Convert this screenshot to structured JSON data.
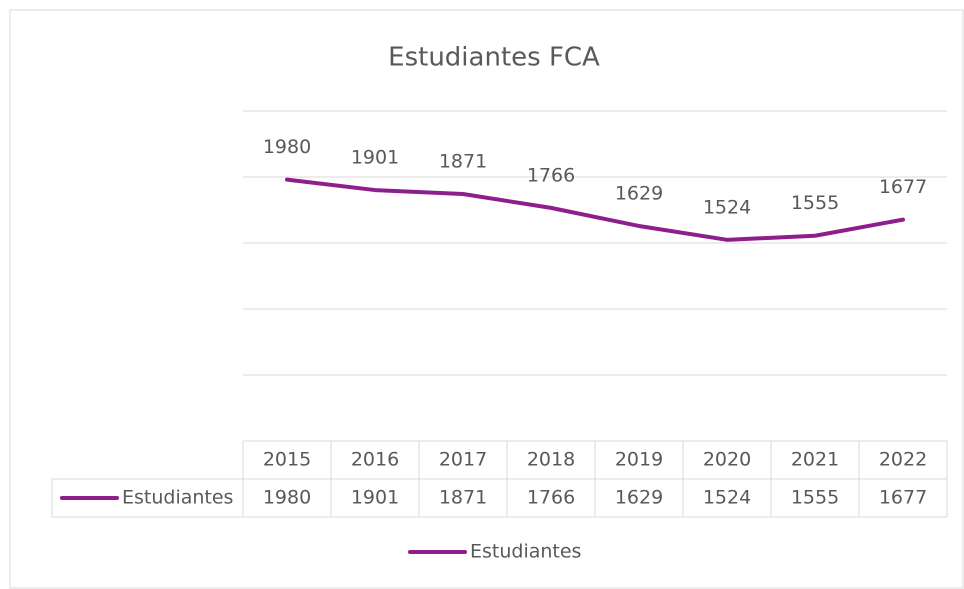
{
  "chart_data": {
    "type": "line",
    "title": "Estudiantes FCA",
    "categories": [
      "2015",
      "2016",
      "2017",
      "2018",
      "2019",
      "2020",
      "2021",
      "2022"
    ],
    "series": [
      {
        "name": "Estudiantes",
        "color": "#8e1e8e",
        "values": [
          1980,
          1901,
          1871,
          1766,
          1629,
          1524,
          1555,
          1677
        ]
      }
    ],
    "ylim": [
      0,
      2500
    ],
    "yticks": [
      0,
      500,
      1000,
      1500,
      2000,
      2500
    ],
    "grid": true,
    "legend": "bottom",
    "data_table": true,
    "data_labels": true
  }
}
